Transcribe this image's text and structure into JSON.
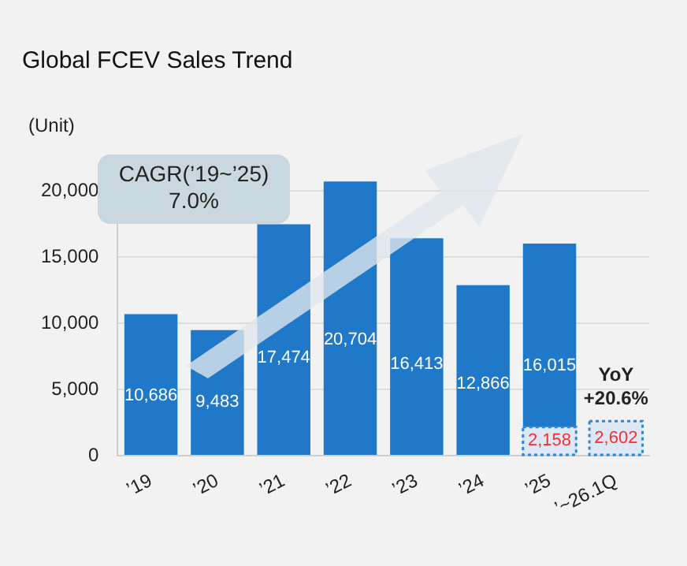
{
  "chart_data": {
    "type": "bar",
    "title": "Global FCEV Sales Trend",
    "ylabel": "(Unit)",
    "categories": [
      "’19",
      "’20",
      "’21",
      "’22",
      "’23",
      "’24",
      "’25",
      "’~26.1Q"
    ],
    "series": [
      {
        "color": "#1f78c8",
        "values": [
          10686,
          9483,
          17474,
          20704,
          16413,
          12866,
          16015,
          null
        ],
        "value_labels": [
          "10,686",
          "9,483",
          "17,474",
          "20,704",
          "16,413",
          "12,866",
          "16,015",
          null
        ]
      },
      {
        "color": "#dce8f6",
        "values": [
          null,
          null,
          null,
          null,
          null,
          null,
          2158,
          2602
        ],
        "value_labels": [
          null,
          null,
          null,
          null,
          null,
          null,
          "2,158",
          "2,602"
        ],
        "line_style": "dotted"
      }
    ],
    "ylim": [
      0,
      22500
    ],
    "yticks": [
      0,
      {
        "value": 5000,
        "label": "5,000"
      },
      {
        "value": 10000,
        "label": "10,000"
      },
      {
        "value": 15000,
        "label": "15,000"
      },
      {
        "value": 20000,
        "label": "20,000"
      }
    ],
    "grid": "y",
    "legend": false,
    "annotations": [
      "CAGR(’19~’25)\n7.0%",
      {
        "text": "YoY\n+20.6%",
        "x": "’~26.1Q",
        "y": 2602
      }
    ]
  }
}
